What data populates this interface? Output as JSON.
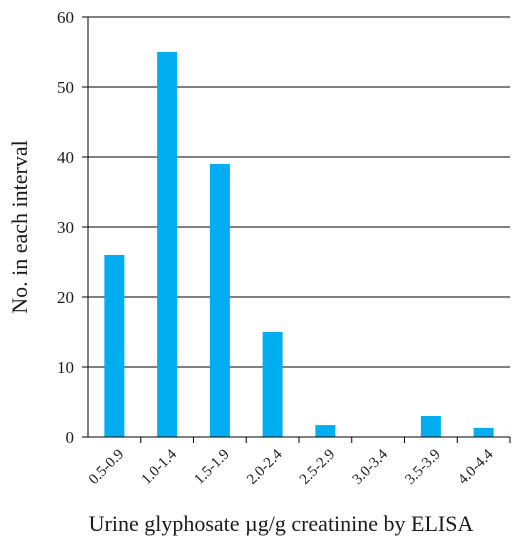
{
  "chart_data": {
    "type": "bar",
    "title": "",
    "xlabel": "Urine glyphosate µg/g creatinine by ELISA",
    "ylabel": "No. in each interval",
    "categories": [
      "0.5-0.9",
      "1.0-1.4",
      "1.5-1.9",
      "2.0-2.4",
      "2.5-2.9",
      "3.0-3.4",
      "3.5-3.9",
      "4.0-4.4"
    ],
    "values": [
      26,
      55,
      39,
      15,
      1.7,
      0,
      3,
      1.3
    ],
    "ylim": [
      0,
      60
    ],
    "yticks": [
      0,
      10,
      20,
      30,
      40,
      50,
      60
    ],
    "grid": "horizontal",
    "legend": "none",
    "bar_color": "#00adef",
    "grid_color": "#000000"
  }
}
